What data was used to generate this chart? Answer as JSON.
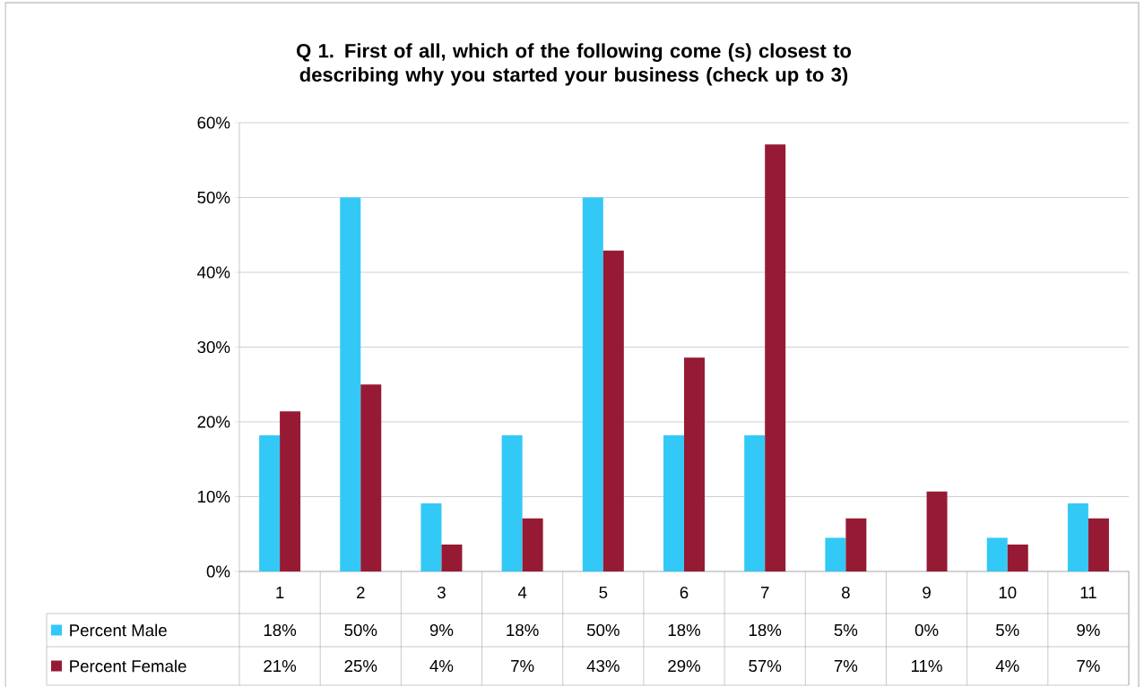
{
  "chart_data": {
    "type": "bar",
    "title": "Q 1. First of all, which of the following come (s) closest to describing why you started your business (check up to 3)",
    "categories": [
      "1",
      "2",
      "3",
      "4",
      "5",
      "6",
      "7",
      "8",
      "9",
      "10",
      "11"
    ],
    "series": [
      {
        "name": "Percent Male",
        "color": "#33c9f7",
        "values": [
          18.2,
          50,
          9.1,
          18.2,
          50,
          18.2,
          18.2,
          4.5,
          0,
          4.5,
          9.1
        ],
        "value_labels": [
          "18%",
          "50%",
          "9%",
          "18%",
          "50%",
          "18%",
          "18%",
          "5%",
          "0%",
          "5%",
          "9%"
        ]
      },
      {
        "name": "Percent Female",
        "color": "#961a34",
        "values": [
          21.4,
          25,
          3.6,
          7.1,
          42.9,
          28.6,
          57.1,
          7.1,
          10.7,
          3.6,
          7.1
        ],
        "value_labels": [
          "21%",
          "25%",
          "4%",
          "7%",
          "43%",
          "29%",
          "57%",
          "7%",
          "11%",
          "4%",
          "7%"
        ]
      }
    ],
    "ylim": [
      0,
      60
    ],
    "yticks": [
      {
        "value": 0,
        "label": "0%"
      },
      {
        "value": 10,
        "label": "10%"
      },
      {
        "value": 20,
        "label": "20%"
      },
      {
        "value": 30,
        "label": "30%"
      },
      {
        "value": 40,
        "label": "40%"
      },
      {
        "value": 50,
        "label": "50%"
      },
      {
        "value": 60,
        "label": "60%"
      }
    ],
    "grid": "y",
    "legend": "bottom"
  }
}
